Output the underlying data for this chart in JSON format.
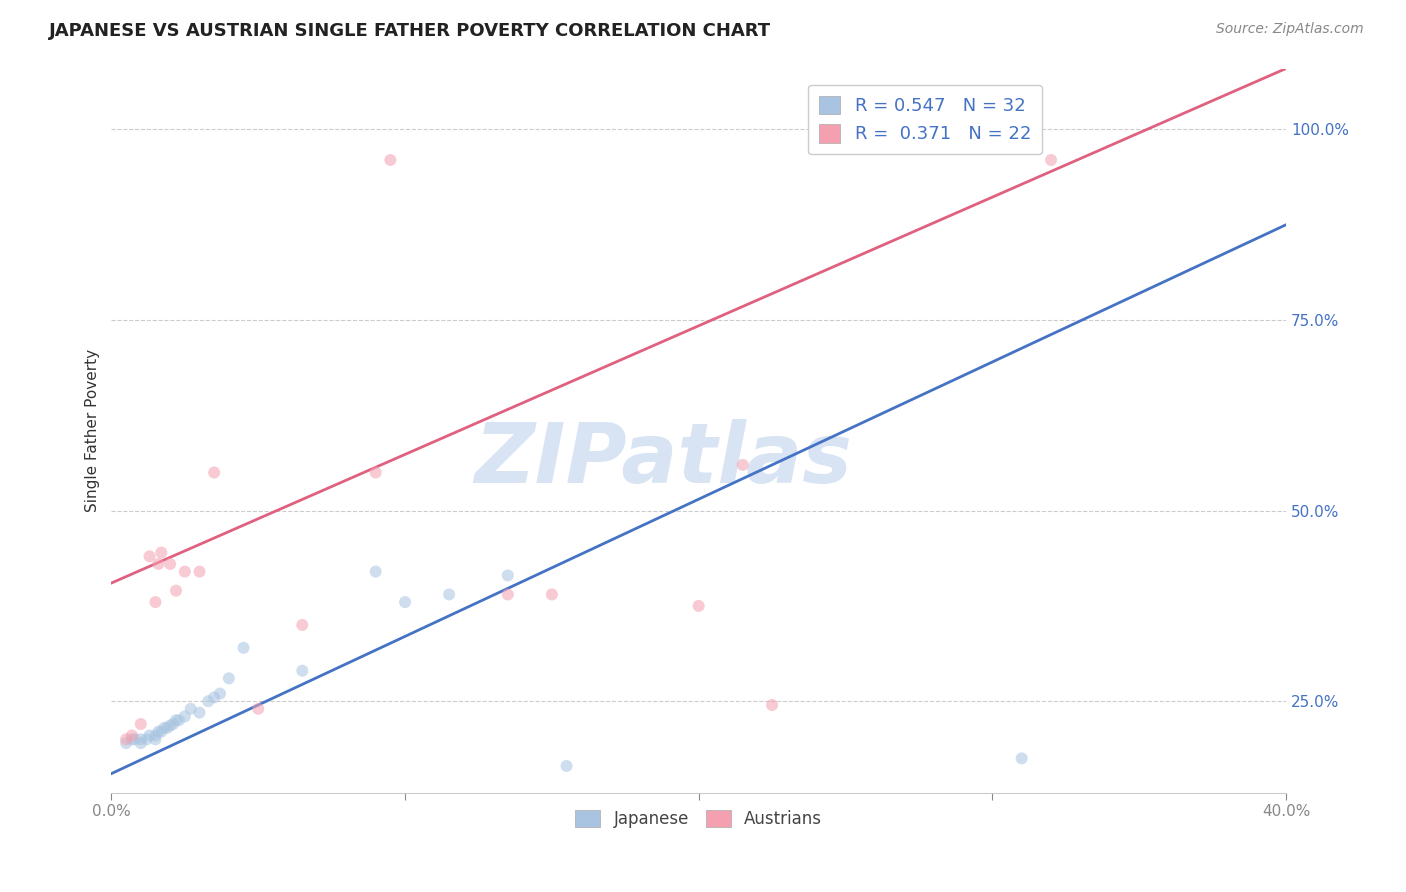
{
  "title": "JAPANESE VS AUSTRIAN SINGLE FATHER POVERTY CORRELATION CHART",
  "source": "Source: ZipAtlas.com",
  "ylabel": "Single Father Poverty",
  "xmin": 0.0,
  "xmax": 0.4,
  "ymin": 0.13,
  "ymax": 1.08,
  "yticks": [
    0.25,
    0.5,
    0.75,
    1.0
  ],
  "ytick_labels": [
    "25.0%",
    "50.0%",
    "75.0%",
    "100.0%"
  ],
  "xticks": [
    0.0,
    0.1,
    0.2,
    0.3,
    0.4
  ],
  "xtick_labels": [
    "0.0%",
    "",
    "",
    "",
    "40.0%"
  ],
  "japanese_x": [
    0.005,
    0.007,
    0.008,
    0.01,
    0.01,
    0.012,
    0.013,
    0.015,
    0.015,
    0.016,
    0.017,
    0.018,
    0.019,
    0.02,
    0.021,
    0.022,
    0.023,
    0.025,
    0.027,
    0.03,
    0.033,
    0.035,
    0.037,
    0.04,
    0.045,
    0.065,
    0.09,
    0.1,
    0.115,
    0.135,
    0.155,
    0.31
  ],
  "japanese_y": [
    0.195,
    0.2,
    0.2,
    0.195,
    0.2,
    0.2,
    0.205,
    0.2,
    0.205,
    0.21,
    0.21,
    0.215,
    0.215,
    0.218,
    0.22,
    0.225,
    0.225,
    0.23,
    0.24,
    0.235,
    0.25,
    0.255,
    0.26,
    0.28,
    0.32,
    0.29,
    0.42,
    0.38,
    0.39,
    0.415,
    0.165,
    0.175
  ],
  "austrians_x": [
    0.005,
    0.007,
    0.01,
    0.013,
    0.015,
    0.016,
    0.017,
    0.02,
    0.022,
    0.025,
    0.03,
    0.035,
    0.05,
    0.065,
    0.09,
    0.095,
    0.135,
    0.15,
    0.2,
    0.215,
    0.225,
    0.32
  ],
  "austrians_y": [
    0.2,
    0.205,
    0.22,
    0.44,
    0.38,
    0.43,
    0.445,
    0.43,
    0.395,
    0.42,
    0.42,
    0.55,
    0.24,
    0.35,
    0.55,
    0.96,
    0.39,
    0.39,
    0.375,
    0.56,
    0.245,
    0.96
  ],
  "japanese_color": "#a8c4e0",
  "austrians_color": "#f4a0b0",
  "japanese_line_color": "#4472c4",
  "austrians_line_color": "#e06080",
  "japanese_R": 0.547,
  "japanese_N": 32,
  "austrians_R": 0.371,
  "austrians_N": 22,
  "japanese_line_x0": 0.0,
  "japanese_line_y0": 0.155,
  "japanese_line_x1": 0.4,
  "japanese_line_y1": 0.875,
  "austrians_line_x0": 0.0,
  "austrians_line_y0": 0.405,
  "austrians_line_x1": 0.4,
  "austrians_line_y1": 1.08,
  "watermark": "ZIPatlas",
  "watermark_color": "#c8d8ee",
  "background_color": "#ffffff",
  "grid_color": "#cccccc",
  "title_fontsize": 13,
  "axis_label_color": "#4472c4",
  "marker_size": 75,
  "marker_alpha": 0.55,
  "line_width": 2.0
}
